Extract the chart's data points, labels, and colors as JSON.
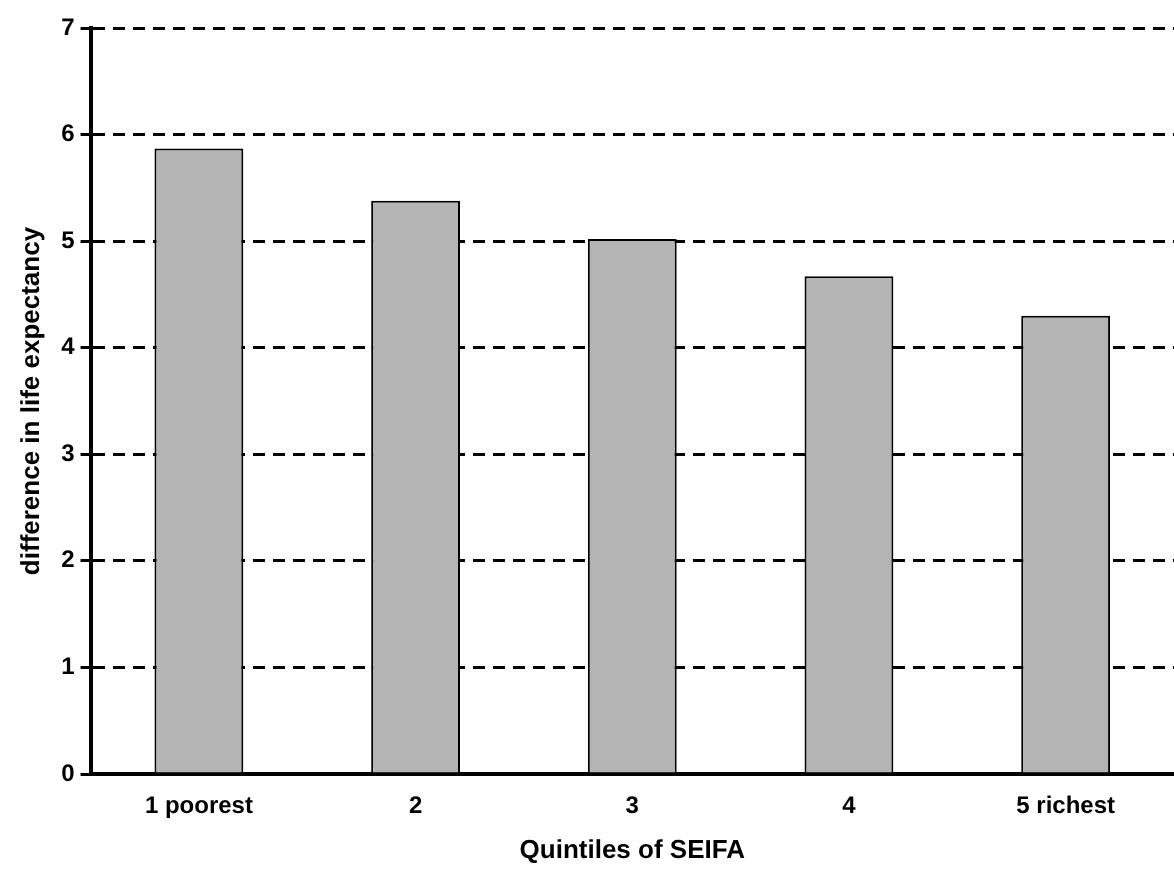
{
  "chart_data": {
    "type": "bar",
    "xlabel": "Quintiles of SEIFA",
    "ylabel": "difference in life expectancy",
    "categories": [
      "1 poorest",
      "2",
      "3",
      "4",
      "5 richest"
    ],
    "values": [
      5.87,
      5.38,
      5.02,
      4.67,
      4.3
    ],
    "color": "#b4b4b4",
    "ylim": [
      0,
      7
    ],
    "yticks": [
      0,
      1,
      2,
      3,
      4,
      5,
      6,
      7
    ],
    "grid": "y"
  }
}
